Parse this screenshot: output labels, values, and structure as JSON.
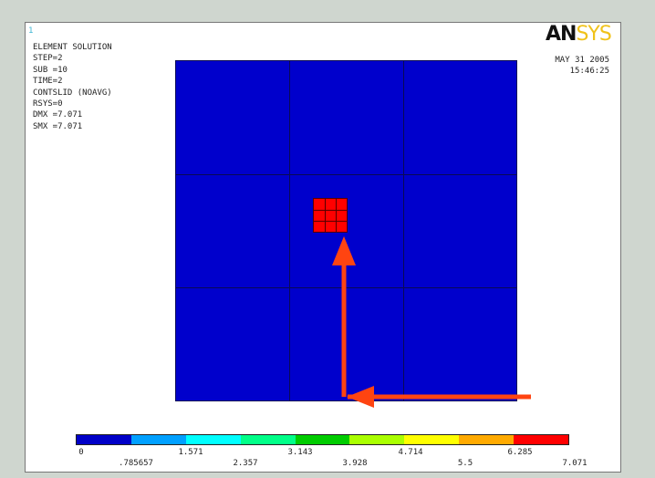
{
  "window_number": "1",
  "logo": {
    "part1": "AN",
    "part2": "SYS"
  },
  "info_lines": [
    "ELEMENT SOLUTION",
    "",
    "STEP=2",
    "SUB =10",
    "TIME=2",
    "CONTSLID (NOAVG)",
    "RSYS=0",
    "DMX =7.071",
    "SMX =7.071"
  ],
  "date": "MAY 31 2005",
  "time": "15:46:25",
  "colors": {
    "field": "#0000cc",
    "hotspot": "#ff0000",
    "arrow": "#ff4411",
    "legend": [
      "#0000c8",
      "#00a0ff",
      "#00ffff",
      "#00ff88",
      "#00cc00",
      "#aaff00",
      "#ffff00",
      "#ffaa00",
      "#ff0000"
    ]
  },
  "legend_labels_top": [
    "0",
    "1.571",
    "3.143",
    "4.714",
    "6.285"
  ],
  "legend_labels_bottom": [
    ".785657",
    "2.357",
    "3.928",
    "5.5",
    "7.071"
  ]
}
